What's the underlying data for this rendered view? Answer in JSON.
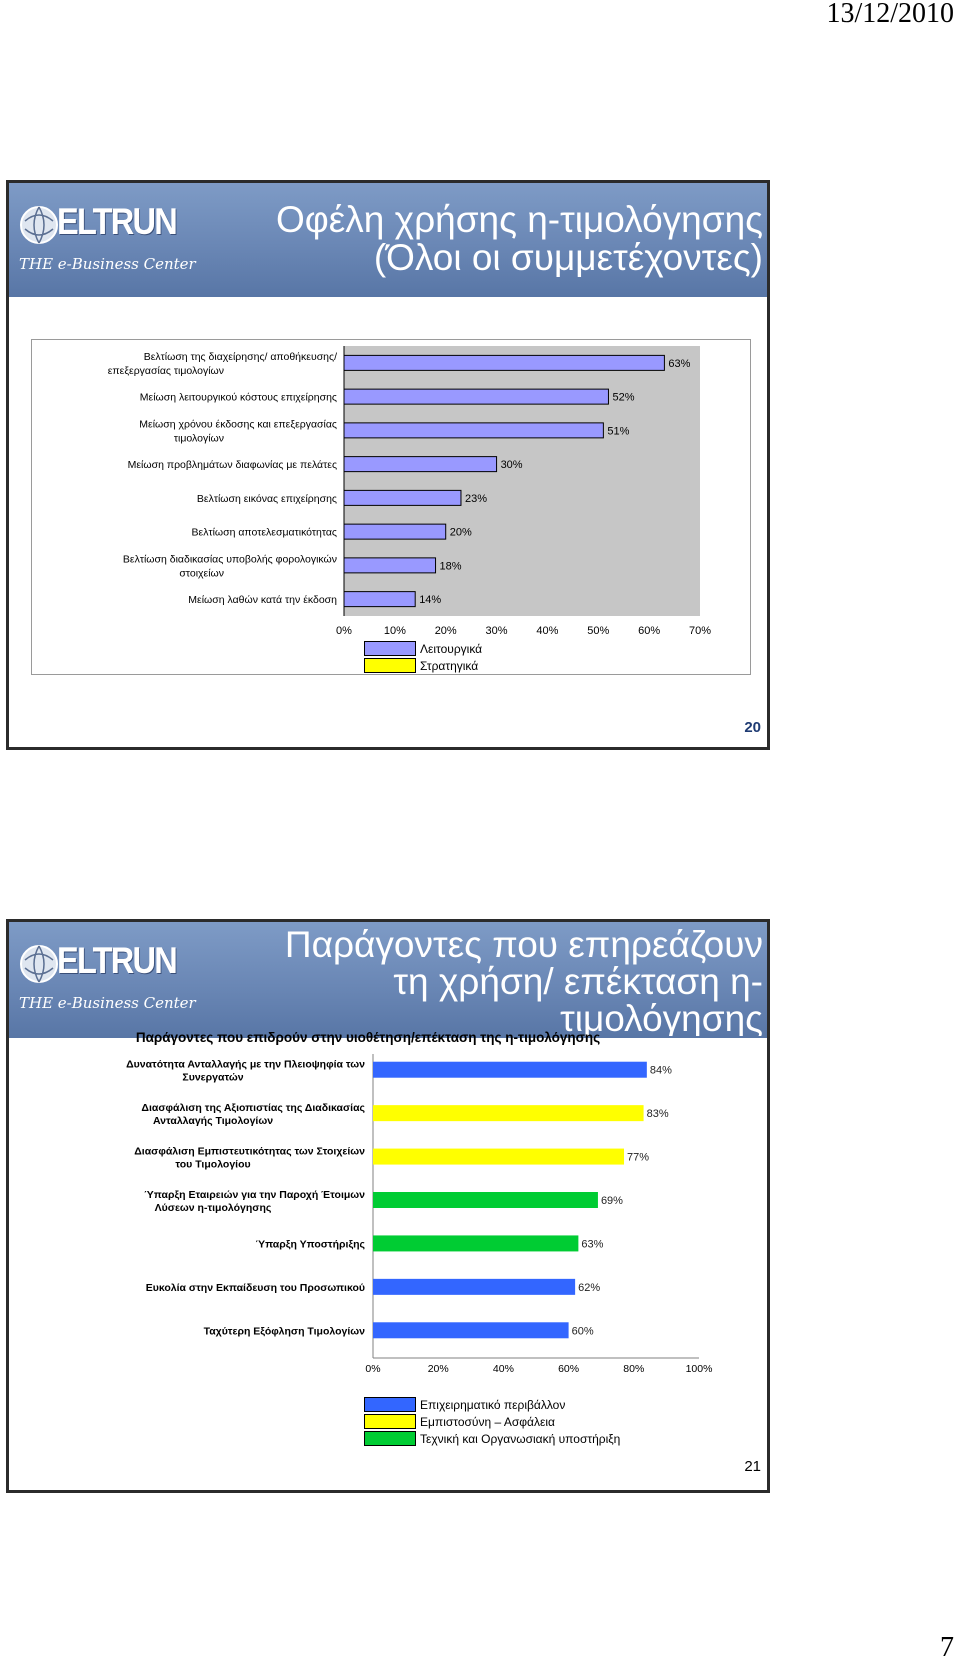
{
  "page": {
    "date": "13/12/2010",
    "page_number": "7"
  },
  "logo": {
    "word": "ELTRUN",
    "tagline": "THE e-Business Center"
  },
  "slide1": {
    "title_line1": "Οφέλη χρήσης η-τιμολόγησης",
    "title_line2": "(Όλοι οι συμμετέχοντες)",
    "slide_number": "20",
    "legend": [
      {
        "label": "Λειτουργικά",
        "color": "#9999ff"
      },
      {
        "label": "Στρατηγικά",
        "color": "#ffff00"
      }
    ]
  },
  "slide2": {
    "title_line1": "Παράγοντες που επηρεάζουν",
    "title_line2": "τη χρήση/ επέκταση η-",
    "title_line3": "τιμολόγησης",
    "slide_number": "21",
    "legend": [
      {
        "label": "Επιχειρηματικό περιβάλλον",
        "color": "#3366ff"
      },
      {
        "label": "Εμπιστοσύνη – Ασφάλεια",
        "color": "#ffff00"
      },
      {
        "label": "Τεχνική και Οργανωσιακή υποστήριξη",
        "color": "#00cc33"
      }
    ]
  },
  "chart_data": [
    {
      "type": "bar",
      "orientation": "horizontal",
      "title": "",
      "categories": [
        "Βελτίωση της διαχείρησης/ αποθήκευσης/ επεξεργασίας τιμολογίων",
        "Μείωση λειτουργικού κόστους επιχείρησης",
        "Μείωση χρόνου έκδοσης και επεξεργασίας τιμολογίων",
        "Μείωση προβλημάτων διαφωνίας με πελάτες",
        "Βελτίωση εικόνας επιχείρησης",
        "Βελτίωση αποτελεσματικότητας",
        "Βελτίωση διαδικασίας υποβολής φορολογικών στοιχείων",
        "Μείωση λαθών κατά την έκδοση"
      ],
      "values": [
        63,
        52,
        51,
        30,
        23,
        20,
        18,
        14
      ],
      "data_labels": [
        "63%",
        "52%",
        "51%",
        "30%",
        "23%",
        "20%",
        "18%",
        "14%"
      ],
      "bar_colors": [
        "#9999ff",
        "#9999ff",
        "#9999ff",
        "#9999ff",
        "#9999ff",
        "#9999ff",
        "#9999ff",
        "#9999ff"
      ],
      "x_ticks": [
        "0%",
        "10%",
        "20%",
        "30%",
        "40%",
        "50%",
        "60%",
        "70%"
      ],
      "xlim": [
        0,
        70
      ],
      "grid": false,
      "legend_position": "bottom"
    },
    {
      "type": "bar",
      "orientation": "horizontal",
      "title": "Παράγοντες που επιδρούν στην υιοθέτηση/επέκταση της η-τιμολόγησης",
      "categories": [
        "Δυνατότητα Ανταλλαγής με την Πλειοψηφία των Συνεργατών",
        "Διασφάλιση της Αξιοπιστίας της Διαδικασίας Ανταλλαγής Τιμολογίων",
        "Διασφάλιση Εμπιστευτικότητας των Στοιχείων του Τιμολογίου",
        "Ύπαρξη Εταιρειών για την Παροχή Έτοιμων Λύσεων η-τιμολόγησης",
        "Ύπαρξη Υποστήριξης",
        "Ευκολία στην Εκπαίδευση του Προσωπικού",
        "Ταχύτερη Εξόφληση Τιμολογίων"
      ],
      "values": [
        84,
        83,
        77,
        69,
        63,
        62,
        60
      ],
      "data_labels": [
        "84%",
        "83%",
        "77%",
        "69%",
        "63%",
        "62%",
        "60%"
      ],
      "bar_colors": [
        "#3366ff",
        "#ffff00",
        "#ffff00",
        "#00cc33",
        "#00cc33",
        "#3366ff",
        "#3366ff"
      ],
      "x_ticks": [
        "0%",
        "20%",
        "40%",
        "60%",
        "80%",
        "100%"
      ],
      "xlim": [
        0,
        100
      ],
      "grid": false,
      "legend_position": "bottom"
    }
  ]
}
